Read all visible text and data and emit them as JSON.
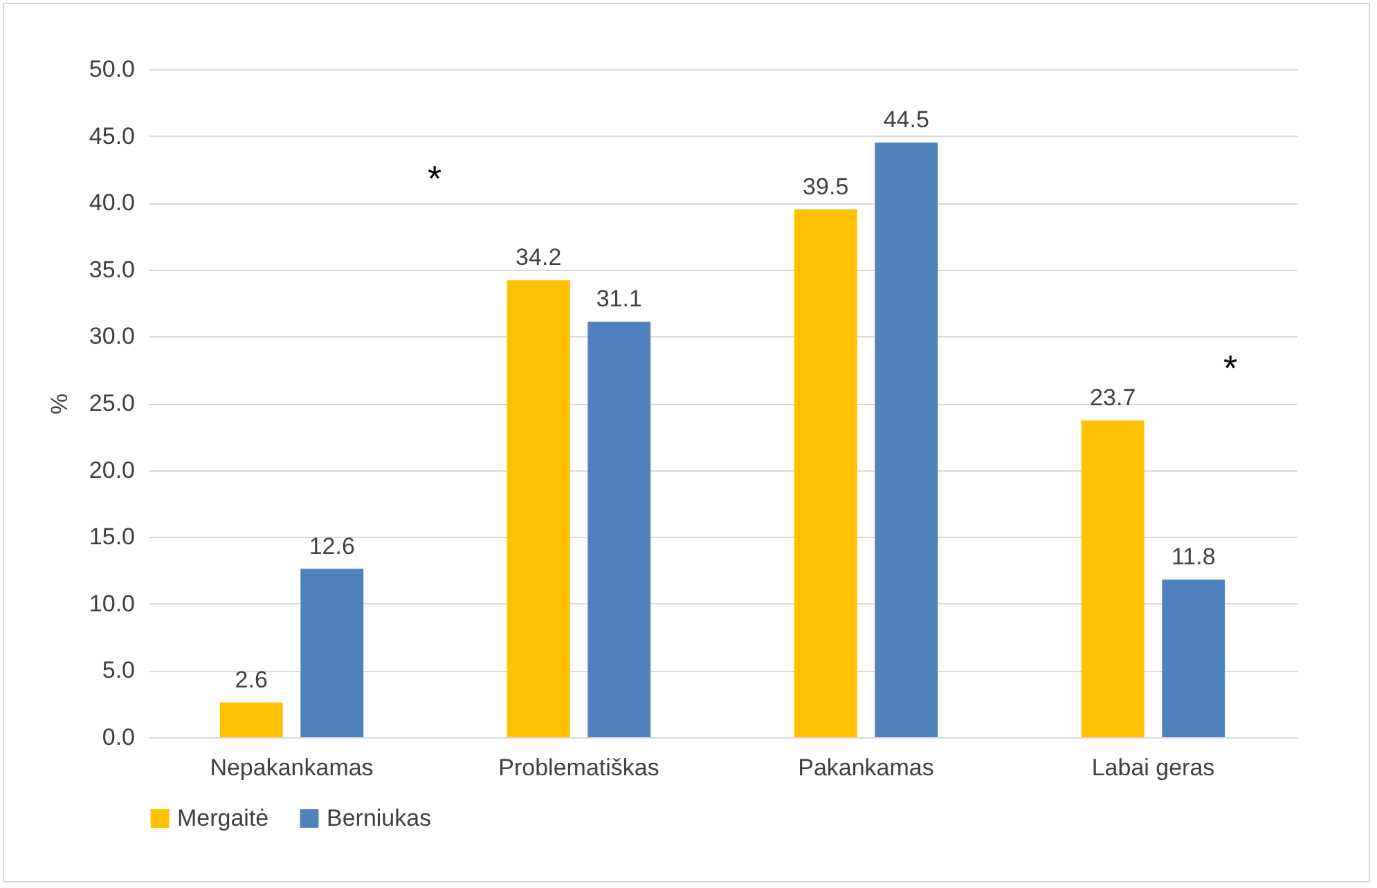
{
  "chart_data": {
    "type": "bar",
    "ylabel": "%",
    "categories": [
      "Nepakankamas",
      "Problematiškas",
      "Pakankamas",
      "Labai geras"
    ],
    "series": [
      {
        "name": "Mergaitė",
        "color": "#ffc000",
        "values": [
          2.6,
          34.2,
          39.5,
          23.7
        ]
      },
      {
        "name": "Berniukas",
        "color": "#4f81bd",
        "values": [
          12.6,
          31.1,
          44.5,
          11.8
        ]
      }
    ],
    "ylim": [
      0,
      50
    ],
    "yticks": [
      {
        "value": 0,
        "label": "0.0"
      },
      {
        "value": 5,
        "label": "5.0"
      },
      {
        "value": 10,
        "label": "10.0"
      },
      {
        "value": 15,
        "label": "15.0"
      },
      {
        "value": 20,
        "label": "20.0"
      },
      {
        "value": 25,
        "label": "25.0"
      },
      {
        "value": 30,
        "label": "30.0"
      },
      {
        "value": 35,
        "label": "35.0"
      },
      {
        "value": 40,
        "label": "40.0"
      },
      {
        "value": 45,
        "label": "45.0"
      },
      {
        "value": 50,
        "label": "50.0"
      }
    ],
    "grid": "y",
    "legend": "bottom",
    "data_labels": true,
    "annotations": [
      "*",
      "*"
    ]
  }
}
